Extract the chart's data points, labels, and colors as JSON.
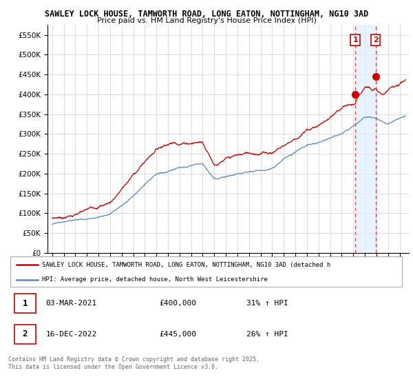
{
  "title_line1": "SAWLEY LOCK HOUSE, TAMWORTH ROAD, LONG EATON, NOTTINGHAM, NG10 3AD",
  "title_line2": "Price paid vs. HM Land Registry's House Price Index (HPI)",
  "legend_label_red": "SAWLEY LOCK HOUSE, TAMWORTH ROAD, LONG EATON, NOTTINGHAM, NG10 3AD (detached h",
  "legend_label_blue": "HPI: Average price, detached house, North West Leicestershire",
  "footer": "Contains HM Land Registry data © Crown copyright and database right 2025.\nThis data is licensed under the Open Government Licence v3.0.",
  "transaction1_label": "1",
  "transaction1_date": "03-MAR-2021",
  "transaction1_price": "£400,000",
  "transaction1_pct": "31% ↑ HPI",
  "transaction2_label": "2",
  "transaction2_date": "16-DEC-2022",
  "transaction2_price": "£445,000",
  "transaction2_pct": "26% ↑ HPI",
  "ylim_min": 0,
  "ylim_max": 575000,
  "yticks": [
    0,
    50000,
    100000,
    150000,
    200000,
    250000,
    300000,
    350000,
    400000,
    450000,
    500000,
    550000
  ],
  "color_red": "#cc0000",
  "color_blue": "#5588bb",
  "color_dashed": "#dd4444",
  "background_chart": "#ffffff",
  "grid_color": "#cccccc",
  "transaction1_year": 2021.17,
  "transaction1_value": 400000,
  "transaction2_year": 2022.92,
  "transaction2_value": 445000,
  "shade_color": "#ddeeff"
}
